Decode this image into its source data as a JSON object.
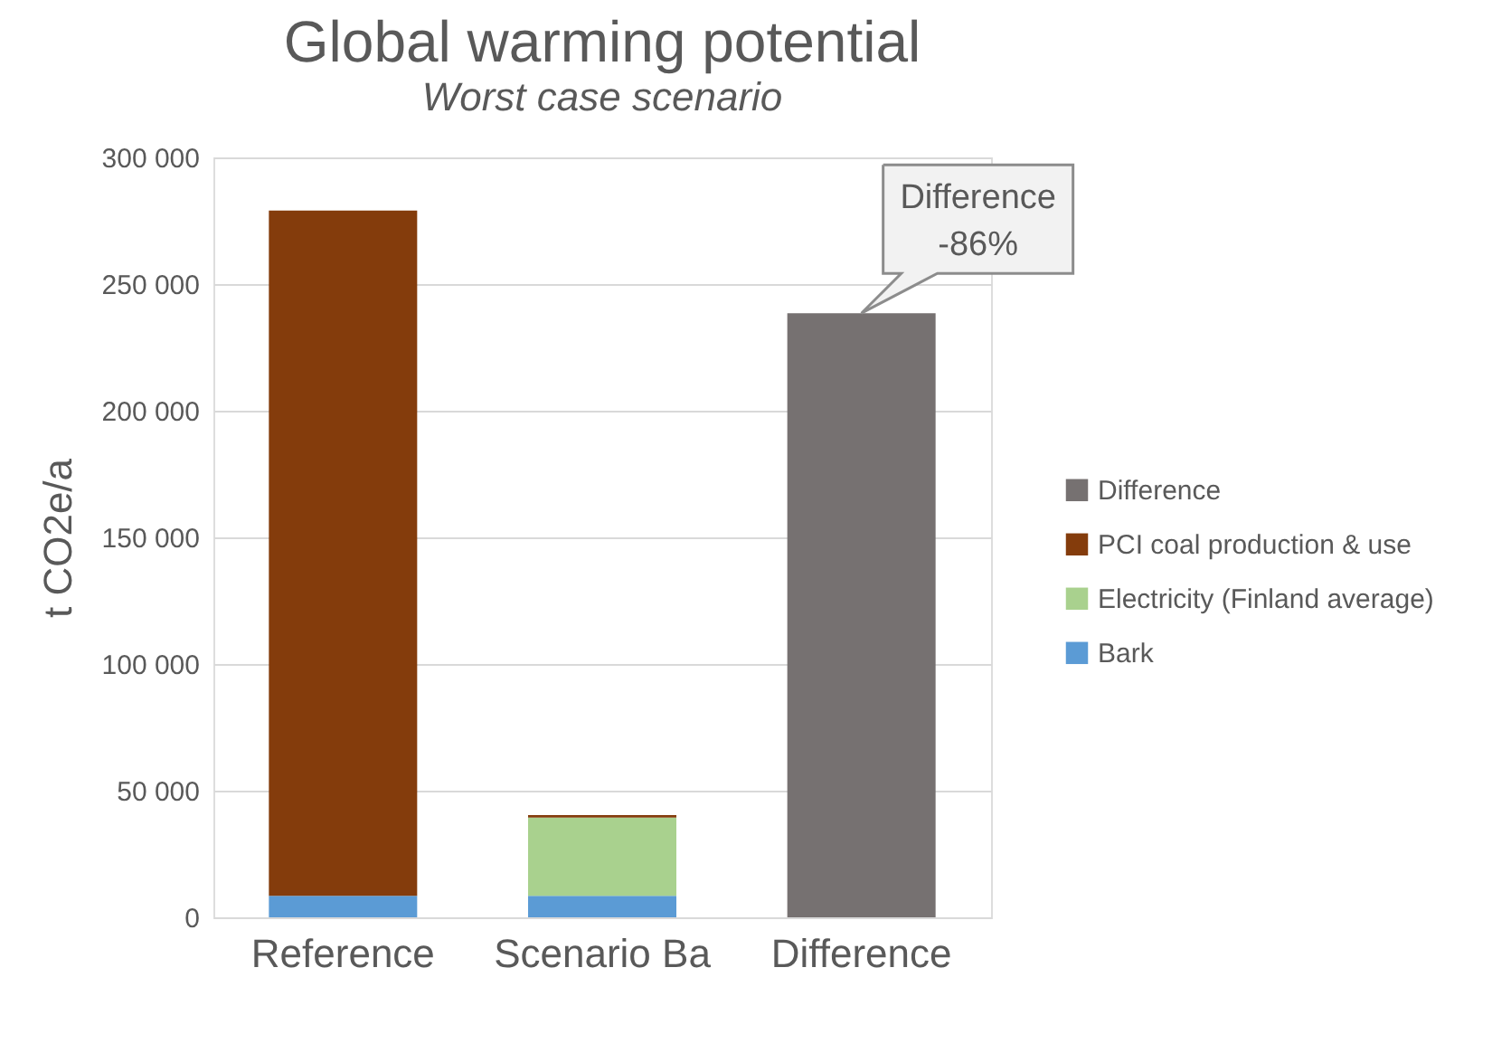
{
  "chart_data": {
    "type": "bar",
    "title": "Global warming potential",
    "subtitle": "Worst case scenario",
    "ylabel": "t CO2e/a",
    "categories": [
      "Reference",
      "Scenario Ba",
      "Difference"
    ],
    "stacked": true,
    "series": [
      {
        "name": "Bark",
        "color": "#5b9bd5",
        "values": [
          8500,
          8500,
          null
        ]
      },
      {
        "name": "Electricity (Finland average)",
        "color": "#a9d18e",
        "values": [
          null,
          30900,
          null
        ]
      },
      {
        "name": "PCI coal production & use",
        "color": "#843c0c",
        "values": [
          270500,
          1000,
          null
        ]
      },
      {
        "name": "Difference",
        "color": "#767171",
        "values": [
          null,
          null,
          238500
        ]
      }
    ],
    "ylim": [
      0,
      300000
    ],
    "yticks": [
      {
        "value": 0,
        "label": "0"
      },
      {
        "value": 50000,
        "label": "50 000"
      },
      {
        "value": 100000,
        "label": "100 000"
      },
      {
        "value": 150000,
        "label": "150 000"
      },
      {
        "value": 200000,
        "label": "200 000"
      },
      {
        "value": 250000,
        "label": "250 000"
      },
      {
        "value": 300000,
        "label": "300 000"
      }
    ],
    "grid": "y",
    "legend": "right",
    "annotations": [
      {
        "text": "Difference\n-86%",
        "x": "Difference",
        "y": 238500
      }
    ]
  }
}
